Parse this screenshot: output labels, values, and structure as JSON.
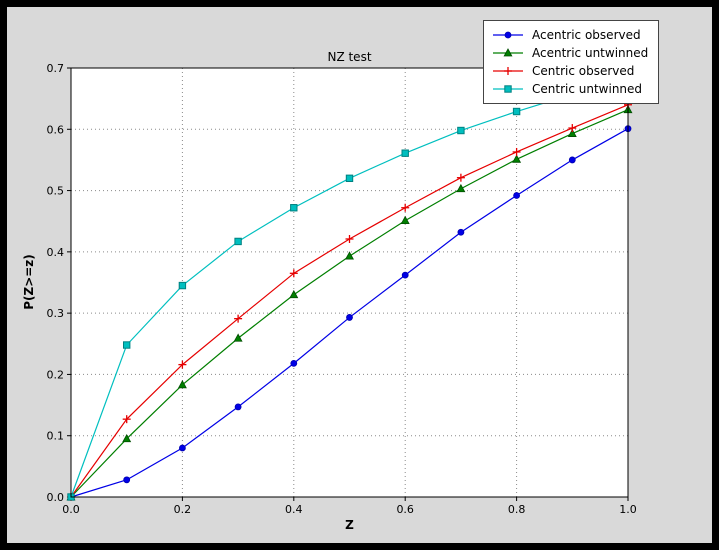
{
  "window": {
    "background": "#000000"
  },
  "figure": {
    "background": "#d9d9d9",
    "plot_background": "#ffffff",
    "grid_color": "#8a8a8a",
    "frame_color": "#000000"
  },
  "chart_data": {
    "type": "line",
    "title": "NZ test",
    "xlabel": "Z",
    "ylabel": "P(Z>=z)",
    "xlim": [
      0.0,
      1.0
    ],
    "ylim": [
      0.0,
      0.7
    ],
    "grid": true,
    "legend_position": "upper right",
    "xtick_labels": [
      "0.0",
      "0.2",
      "0.4",
      "0.6",
      "0.8",
      "1.0"
    ],
    "ytick_labels": [
      "0.0",
      "0.1",
      "0.2",
      "0.3",
      "0.4",
      "0.5",
      "0.6",
      "0.7"
    ],
    "x": [
      0.0,
      0.1,
      0.2,
      0.3,
      0.4,
      0.5,
      0.6,
      0.7,
      0.8,
      0.9,
      1.0
    ],
    "series": [
      {
        "name": "Acentric observed",
        "color": "#0000e6",
        "edge": "#0000b0",
        "marker": "circle",
        "values": [
          0.0,
          0.028,
          0.08,
          0.147,
          0.218,
          0.293,
          0.362,
          0.432,
          0.492,
          0.55,
          0.601
        ]
      },
      {
        "name": "Acentric untwinned",
        "color": "#007f00",
        "edge": "#004d00",
        "marker": "triangle",
        "values": [
          0.0,
          0.095,
          0.183,
          0.259,
          0.33,
          0.393,
          0.451,
          0.503,
          0.551,
          0.593,
          0.632
        ]
      },
      {
        "name": "Centric observed",
        "color": "#e60000",
        "edge": "#e60000",
        "marker": "plus",
        "values": [
          0.0,
          0.127,
          0.216,
          0.291,
          0.365,
          0.421,
          0.472,
          0.521,
          0.563,
          0.602,
          0.64
        ]
      },
      {
        "name": "Centric untwinned",
        "color": "#00bfbf",
        "edge": "#008080",
        "marker": "square",
        "values": [
          0.0,
          0.248,
          0.345,
          0.417,
          0.472,
          0.52,
          0.561,
          0.598,
          0.629,
          0.657,
          0.683
        ]
      }
    ]
  }
}
